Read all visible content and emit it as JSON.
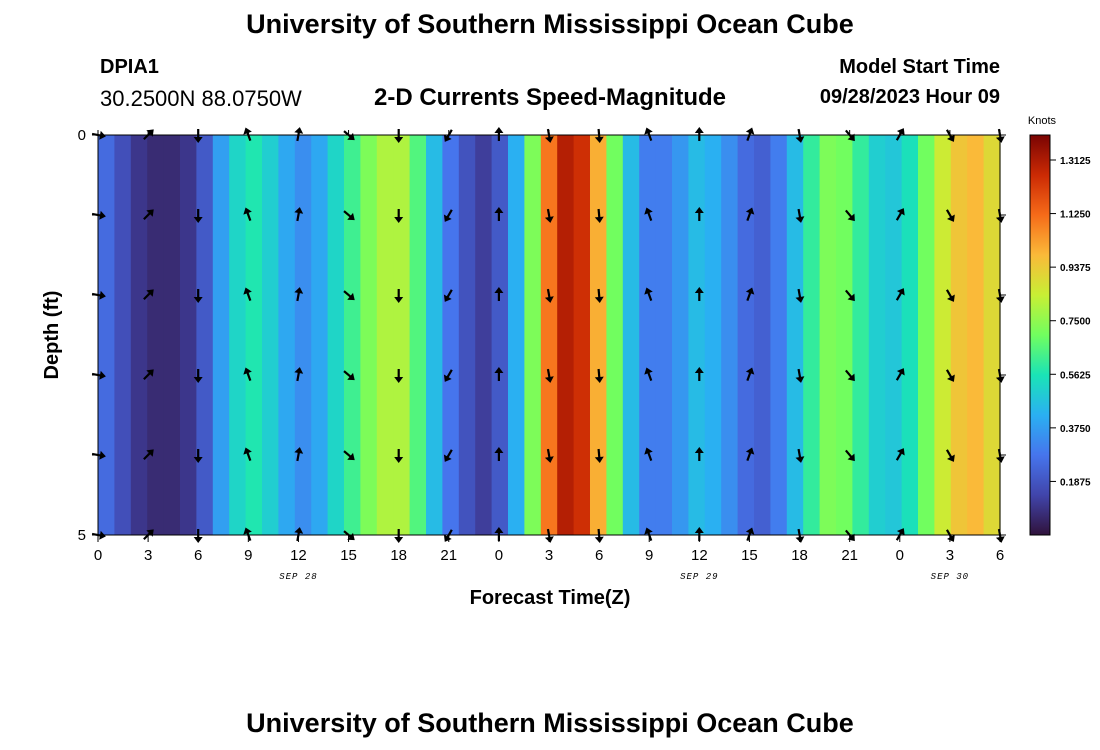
{
  "header": {
    "title": "University of Southern Mississippi Ocean Cube",
    "station_id": "DPIA1",
    "station_coords": "30.2500N  88.0750W",
    "plot_title": "2-D Currents Speed-Magnitude",
    "model_start_label": "Model Start Time",
    "model_start_time": "09/28/2023 Hour 09"
  },
  "footer": {
    "title": "University of Southern Mississippi Ocean Cube"
  },
  "chart_data": {
    "type": "heatmap",
    "title": "2-D Currents Speed-Magnitude",
    "xlabel": "Forecast Time(Z)",
    "ylabel": "Depth (ft)",
    "x_tick_labels": [
      "0",
      "3",
      "6",
      "9",
      "12",
      "15",
      "18",
      "21",
      "0",
      "3",
      "6",
      "9",
      "12",
      "15",
      "18",
      "21",
      "0",
      "3",
      "6"
    ],
    "date_labels": [
      {
        "label": "SEP 28",
        "at_tick": 4
      },
      {
        "label": "SEP 29",
        "at_tick": 12
      },
      {
        "label": "SEP 30",
        "at_tick": 17
      }
    ],
    "y_ticks": [
      "0",
      "5"
    ],
    "ylim": [
      0,
      5
    ],
    "hours": [
      0,
      1,
      2,
      3,
      4,
      5,
      6,
      7,
      8,
      9,
      10,
      11,
      12,
      13,
      14,
      15,
      16,
      17,
      18,
      19,
      20,
      21,
      22,
      23,
      24,
      25,
      26,
      27,
      28,
      29,
      30,
      31,
      32,
      33,
      34,
      35,
      36,
      37,
      38,
      39,
      40,
      41,
      42,
      43,
      44,
      45,
      46,
      47,
      48,
      49,
      50,
      51,
      52,
      53,
      54
    ],
    "speed_knots": [
      0.25,
      0.17,
      0.1,
      0.07,
      0.07,
      0.1,
      0.2,
      0.38,
      0.52,
      0.57,
      0.5,
      0.4,
      0.34,
      0.4,
      0.52,
      0.62,
      0.72,
      0.8,
      0.8,
      0.65,
      0.45,
      0.28,
      0.18,
      0.12,
      0.2,
      0.42,
      0.72,
      1.1,
      1.3,
      1.25,
      1.0,
      0.7,
      0.45,
      0.3,
      0.3,
      0.36,
      0.45,
      0.42,
      0.34,
      0.25,
      0.22,
      0.3,
      0.45,
      0.6,
      0.72,
      0.7,
      0.6,
      0.5,
      0.48,
      0.55,
      0.7,
      0.85,
      0.95,
      0.98,
      0.9
    ],
    "colorbar": {
      "label": "Knots",
      "ticks": [
        "1.3125",
        "1.1250",
        "0.9375",
        "0.7500",
        "0.5625",
        "0.3750",
        "0.1875"
      ],
      "range": [
        0,
        1.4
      ]
    },
    "arrows": {
      "hours": [
        0,
        3,
        6,
        9,
        12,
        15,
        18,
        21,
        24,
        27,
        30,
        33,
        36,
        39,
        42,
        45,
        48,
        51,
        54
      ],
      "directions_deg": [
        100,
        45,
        180,
        340,
        10,
        130,
        180,
        210,
        0,
        170,
        175,
        340,
        0,
        20,
        170,
        140,
        30,
        150,
        170
      ],
      "depths": [
        0,
        1,
        2,
        3,
        4,
        5
      ]
    },
    "grid": false,
    "legend": "right"
  }
}
